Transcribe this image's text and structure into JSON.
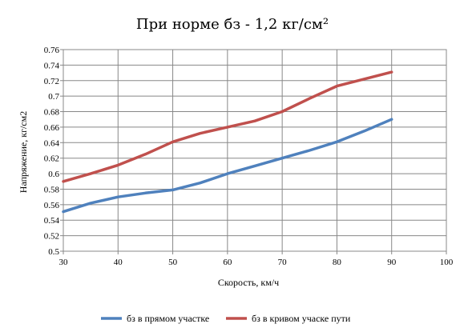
{
  "chart_data": {
    "type": "line",
    "title": "При норме бз  - 1,2 кг/см²",
    "xlabel": "Скорость, км/ч",
    "ylabel": "Напряжение, кг/см2",
    "xlim": [
      30,
      100
    ],
    "ylim": [
      0.5,
      0.76
    ],
    "x_ticks": [
      "30",
      "40",
      "50",
      "60",
      "70",
      "80",
      "90",
      "100"
    ],
    "y_ticks": [
      "0.5",
      "0.52",
      "0.54",
      "0.56",
      "0.58",
      "0.6",
      "0.62",
      "0.64",
      "0.66",
      "0.68",
      "0.7",
      "0.72",
      "0.74",
      "0.76"
    ],
    "grid": true,
    "legend_position": "bottom",
    "series": [
      {
        "name": "бз в прямом участке",
        "color": "#4f81bd",
        "x": [
          30,
          35,
          40,
          45,
          50,
          55,
          60,
          65,
          70,
          75,
          80,
          85,
          90
        ],
        "y": [
          0.551,
          0.562,
          0.57,
          0.575,
          0.579,
          0.588,
          0.6,
          0.61,
          0.62,
          0.63,
          0.641,
          0.655,
          0.67
        ]
      },
      {
        "name": "бз в кривом учаске пути",
        "color": "#c0504d",
        "x": [
          30,
          35,
          40,
          45,
          50,
          55,
          60,
          65,
          70,
          75,
          80,
          85,
          90
        ],
        "y": [
          0.59,
          0.6,
          0.611,
          0.625,
          0.641,
          0.652,
          0.66,
          0.668,
          0.68,
          0.697,
          0.713,
          0.722,
          0.731
        ]
      }
    ]
  }
}
